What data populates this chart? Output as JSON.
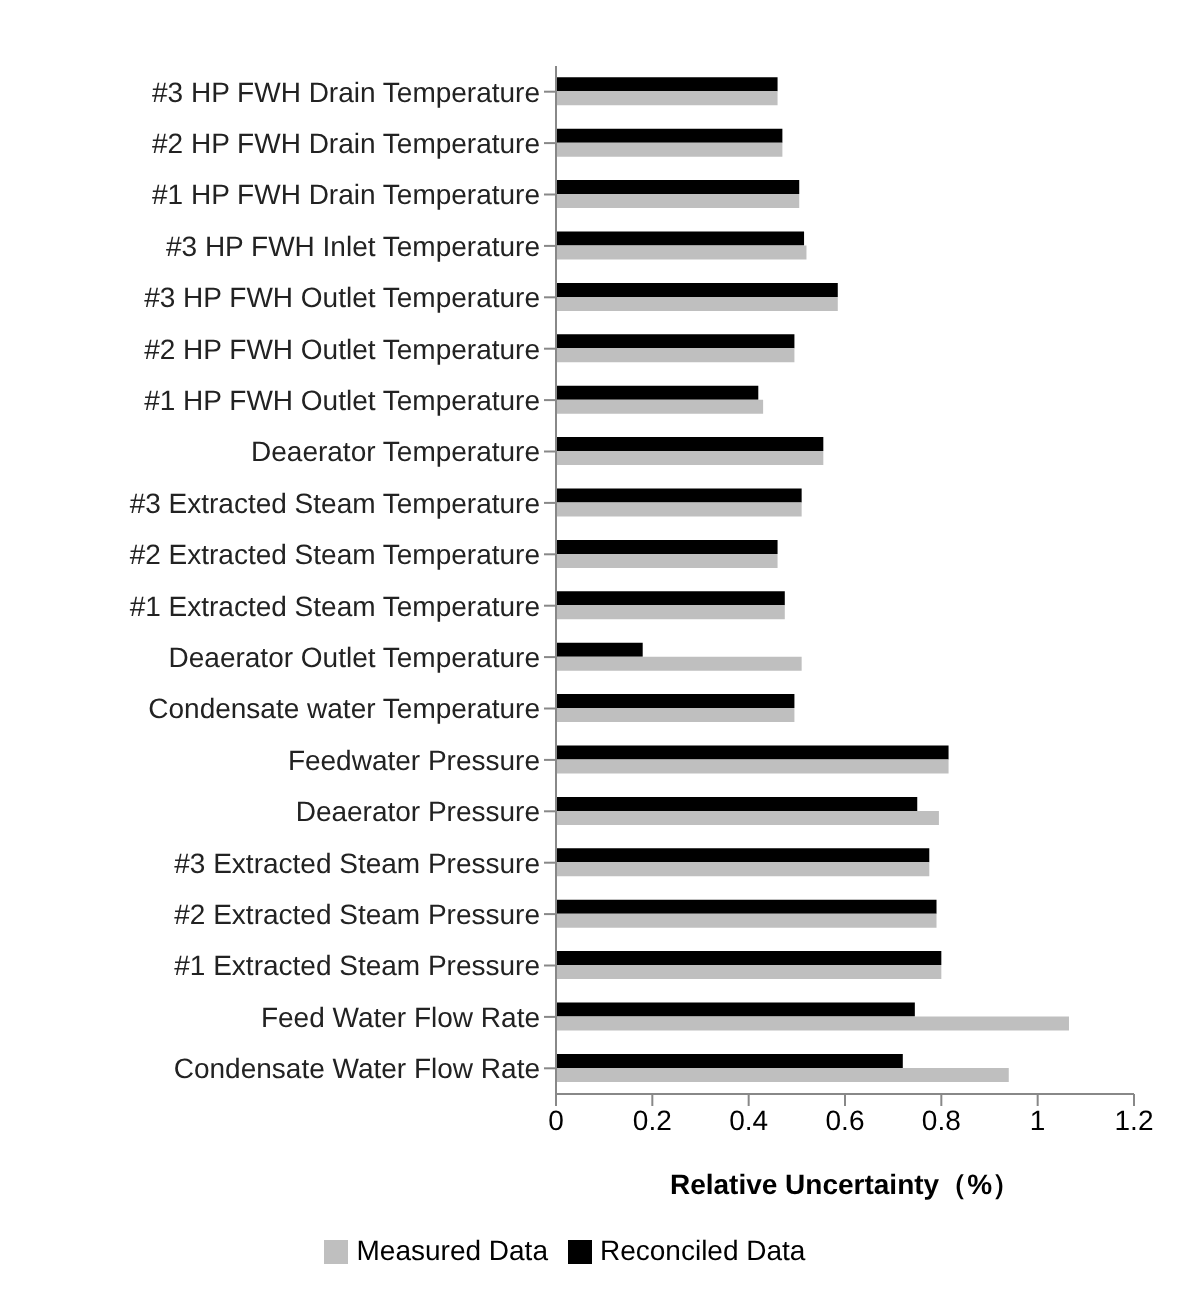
{
  "chart_data": {
    "type": "bar",
    "orientation": "horizontal",
    "xlabel": "Relative Uncertainty（%）",
    "categories": [
      "#3 HP FWH Drain Temperature",
      "#2 HP FWH Drain Temperature",
      "#1 HP FWH Drain Temperature",
      "#3 HP FWH Inlet Temperature",
      "#3 HP FWH Outlet Temperature",
      "#2 HP FWH Outlet Temperature",
      "#1 HP FWH Outlet Temperature",
      "Deaerator Temperature",
      "#3 Extracted Steam Temperature",
      "#2 Extracted Steam Temperature",
      "#1 Extracted Steam Temperature",
      "Deaerator Outlet Temperature",
      "Condensate water Temperature",
      "Feedwater Pressure",
      "Deaerator Pressure",
      "#3 Extracted Steam Pressure",
      "#2 Extracted Steam Pressure",
      "#1 Extracted Steam Pressure",
      "Feed Water Flow Rate",
      "Condensate Water Flow Rate"
    ],
    "series": [
      {
        "name": "Reconciled Data",
        "color": "#000000",
        "values": [
          0.46,
          0.47,
          0.505,
          0.515,
          0.585,
          0.495,
          0.42,
          0.555,
          0.51,
          0.46,
          0.475,
          0.18,
          0.495,
          0.815,
          0.75,
          0.775,
          0.79,
          0.8,
          0.745,
          0.72
        ]
      },
      {
        "name": "Measured Data",
        "color": "#bfbfbf",
        "values": [
          0.46,
          0.47,
          0.505,
          0.52,
          0.585,
          0.495,
          0.43,
          0.555,
          0.51,
          0.46,
          0.475,
          0.51,
          0.495,
          0.815,
          0.795,
          0.775,
          0.79,
          0.8,
          1.065,
          0.94
        ]
      }
    ],
    "xlim": [
      0,
      1.2
    ],
    "xticks": [
      0,
      0.2,
      0.4,
      0.6,
      0.8,
      1,
      1.2
    ],
    "legend": "bottom"
  }
}
